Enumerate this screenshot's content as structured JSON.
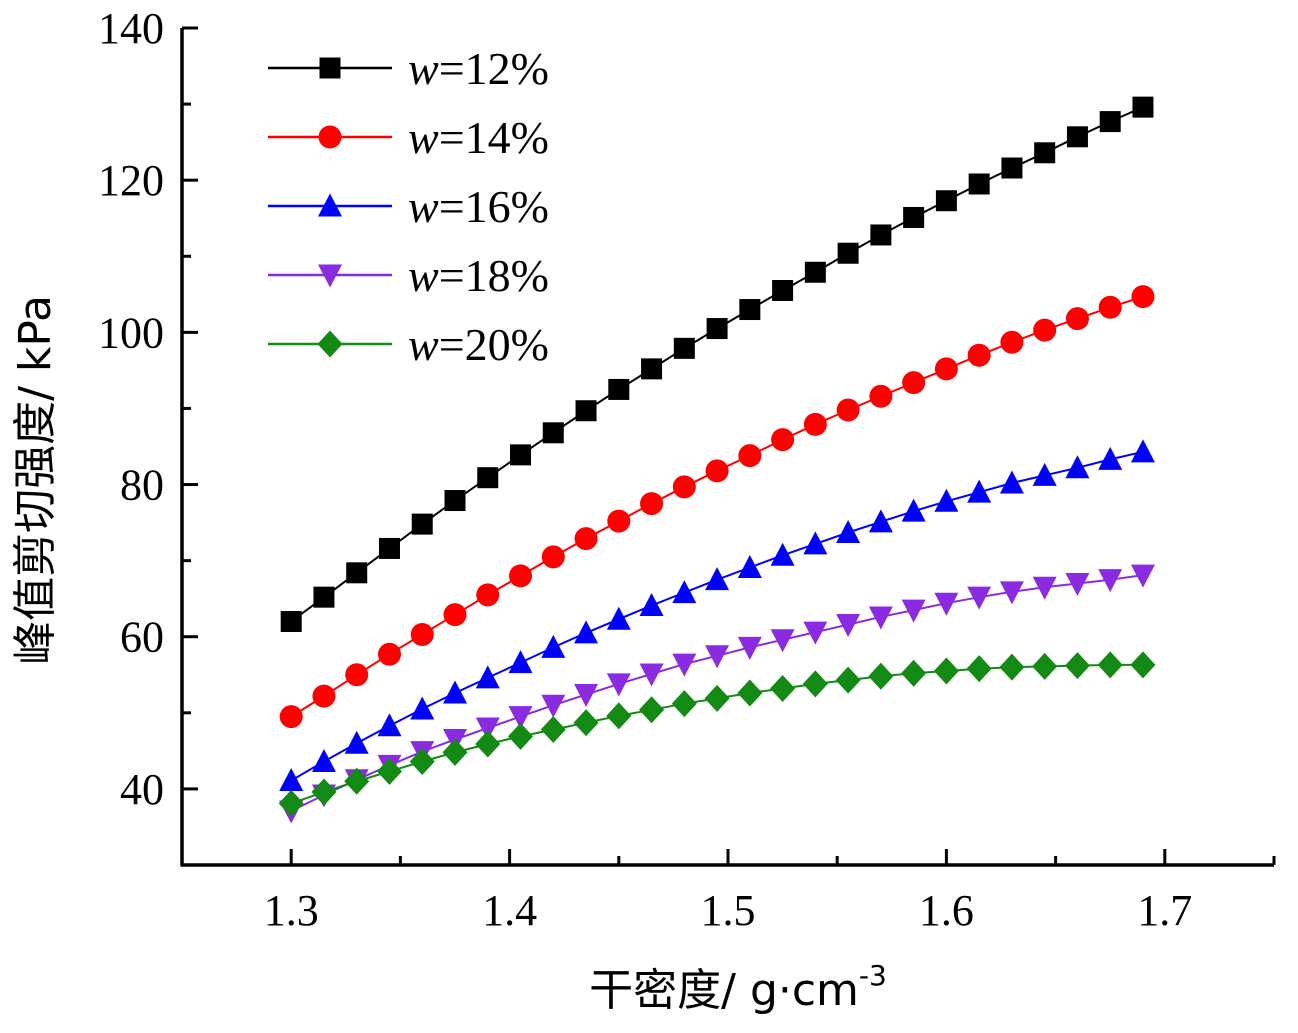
{
  "chart_data": {
    "type": "line",
    "xlabel": "干密度/ g·cm",
    "xlabel_sup": "-3",
    "ylabel": "峰值剪切强度/ kPa",
    "xlim": [
      1.25,
      1.75
    ],
    "ylim": [
      30,
      140
    ],
    "xticks": [
      1.3,
      1.4,
      1.5,
      1.6,
      1.7
    ],
    "xtick_labels": [
      "1.3",
      "1.4",
      "1.5",
      "1.6",
      "1.7"
    ],
    "yticks": [
      40,
      60,
      80,
      100,
      120,
      140
    ],
    "ytick_labels": [
      "40",
      "60",
      "80",
      "100",
      "120",
      "140"
    ],
    "legend_position": "top-left",
    "grid": false,
    "x": [
      1.3,
      1.315,
      1.33,
      1.345,
      1.36,
      1.375,
      1.39,
      1.405,
      1.42,
      1.435,
      1.45,
      1.465,
      1.48,
      1.495,
      1.51,
      1.525,
      1.54,
      1.555,
      1.57,
      1.585,
      1.6,
      1.615,
      1.63,
      1.645,
      1.66,
      1.675,
      1.69
    ],
    "series": [
      {
        "name_var": "w",
        "name_rest": "=12%",
        "color": "#000000",
        "marker": "square",
        "values": [
          62,
          65.2,
          68.4,
          71.6,
          74.8,
          77.9,
          80.9,
          83.9,
          86.8,
          89.7,
          92.5,
          95.2,
          97.9,
          100.5,
          103.0,
          105.5,
          107.9,
          110.4,
          112.8,
          115.1,
          117.3,
          119.5,
          121.6,
          123.6,
          125.7,
          127.7,
          129.6
        ]
      },
      {
        "name_var": "w",
        "name_rest": "=14%",
        "color": "#ff0000",
        "marker": "circle",
        "values": [
          49.5,
          52.2,
          55.0,
          57.7,
          60.3,
          62.9,
          65.5,
          68.0,
          70.5,
          72.9,
          75.2,
          77.5,
          79.7,
          81.8,
          83.8,
          85.9,
          87.9,
          89.8,
          91.6,
          93.4,
          95.2,
          97.0,
          98.7,
          100.3,
          101.8,
          103.3,
          104.7
        ]
      },
      {
        "name_var": "w",
        "name_rest": "=16%",
        "color": "#0000ff",
        "marker": "triangle-up",
        "values": [
          41.1,
          43.6,
          46.0,
          48.3,
          50.5,
          52.6,
          54.6,
          56.6,
          58.6,
          60.5,
          62.3,
          64.1,
          65.8,
          67.5,
          69.1,
          70.7,
          72.2,
          73.7,
          75.1,
          76.5,
          77.8,
          79.0,
          80.2,
          81.2,
          82.2,
          83.3,
          84.3
        ]
      },
      {
        "name_var": "w",
        "name_rest": "=18%",
        "color": "#8a2be2",
        "marker": "triangle-down",
        "values": [
          37.1,
          39.2,
          41.2,
          43.1,
          44.9,
          46.5,
          48.0,
          49.5,
          51.0,
          52.4,
          53.8,
          55.1,
          56.4,
          57.5,
          58.6,
          59.6,
          60.6,
          61.6,
          62.6,
          63.5,
          64.4,
          65.2,
          65.9,
          66.5,
          67.0,
          67.5,
          68.1
        ]
      },
      {
        "name_var": "w",
        "name_rest": "=20%",
        "color": "#138a13",
        "marker": "diamond",
        "values": [
          38.1,
          39.6,
          41.0,
          42.3,
          43.6,
          44.8,
          45.9,
          46.9,
          47.8,
          48.7,
          49.6,
          50.4,
          51.2,
          51.9,
          52.6,
          53.2,
          53.8,
          54.3,
          54.8,
          55.2,
          55.5,
          55.8,
          56.0,
          56.1,
          56.2,
          56.3,
          56.3
        ]
      }
    ]
  }
}
